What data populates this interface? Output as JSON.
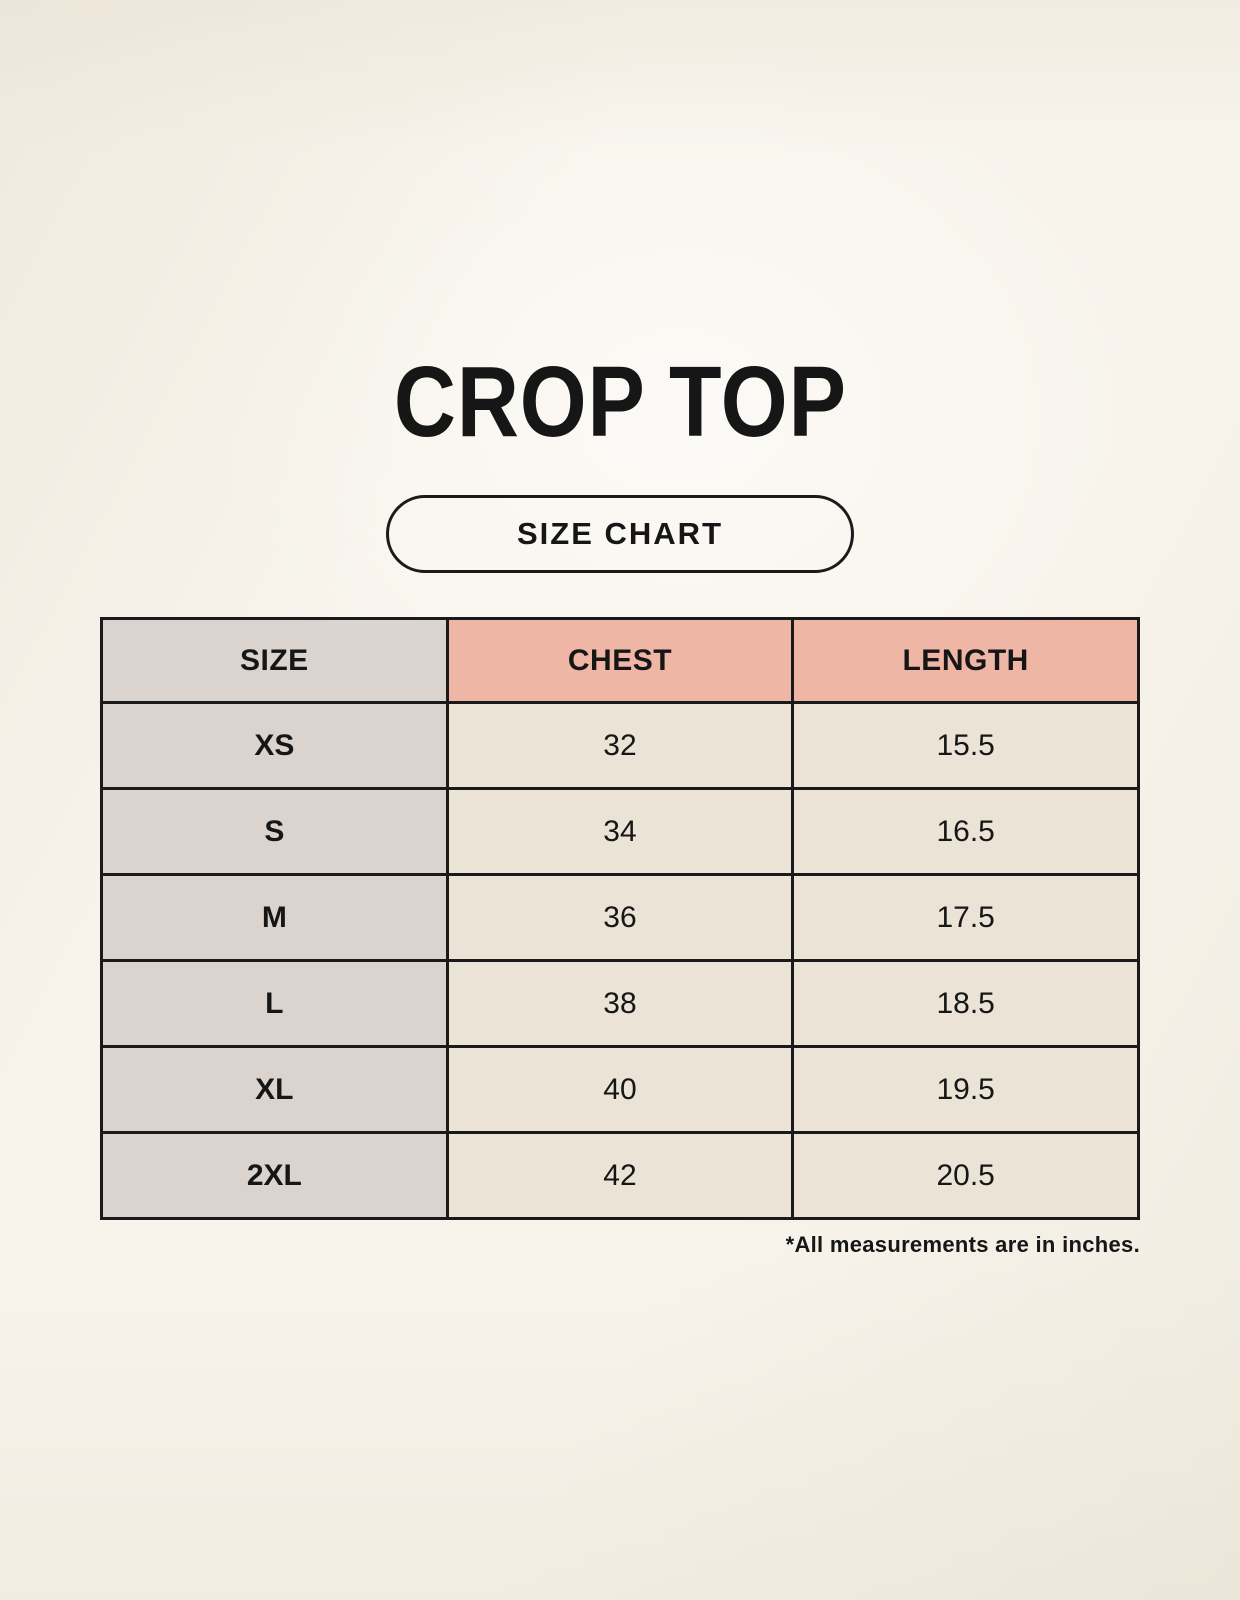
{
  "page": {
    "title": "CROP TOP",
    "size_chart_badge": "SIZE CHART",
    "footnote": "*All measurements are in inches."
  },
  "table": {
    "columns": [
      "SIZE",
      "CHEST",
      "LENGTH"
    ],
    "rows": [
      {
        "size": "XS",
        "chest": "32",
        "length": "15.5"
      },
      {
        "size": "S",
        "chest": "34",
        "length": "16.5"
      },
      {
        "size": "M",
        "chest": "36",
        "length": "17.5"
      },
      {
        "size": "L",
        "chest": "38",
        "length": "18.5"
      },
      {
        "size": "XL",
        "chest": "40",
        "length": "19.5"
      },
      {
        "size": "2XL",
        "chest": "42",
        "length": "20.5"
      }
    ]
  },
  "chart_data": {
    "type": "table",
    "title": "CROP TOP",
    "columns": [
      "SIZE",
      "CHEST",
      "LENGTH"
    ],
    "rows": [
      [
        "XS",
        32,
        15.5
      ],
      [
        "S",
        34,
        16.5
      ],
      [
        "M",
        36,
        17.5
      ],
      [
        "L",
        38,
        18.5
      ],
      [
        "XL",
        40,
        19.5
      ],
      [
        "2XL",
        42,
        20.5
      ]
    ],
    "note": "*All measurements are in inches.",
    "units": "inches"
  },
  "colors": {
    "background": "#f8f4ec",
    "header_size_bg": "#dbd4ce",
    "header_measure_bg": "#efb5a5",
    "size_column_bg": "#dbd4ce",
    "value_cell_bg": "#eae3d6",
    "border": "#1a1a1a",
    "text": "#161616"
  }
}
